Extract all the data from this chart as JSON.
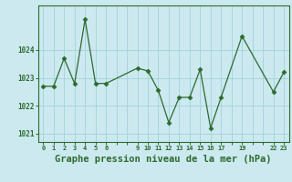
{
  "x_values": [
    0,
    1,
    2,
    3,
    4,
    5,
    6,
    9,
    10,
    11,
    12,
    13,
    14,
    15,
    16,
    17,
    19,
    22,
    23
  ],
  "y_values": [
    1022.7,
    1022.7,
    1023.7,
    1022.8,
    1025.1,
    1022.8,
    1022.8,
    1023.35,
    1023.25,
    1022.55,
    1021.4,
    1022.3,
    1022.3,
    1023.3,
    1021.2,
    1022.3,
    1024.5,
    1022.5,
    1023.2
  ],
  "line_color": "#2d6a2d",
  "marker_color": "#2d6a2d",
  "bg_color": "#cce9f0",
  "grid_color": "#aad4dd",
  "xlabel": "Graphe pression niveau de la mer (hPa)",
  "ylim": [
    1020.7,
    1025.6
  ],
  "xlim": [
    -0.5,
    23.5
  ],
  "ytick_values": [
    1021,
    1022,
    1023,
    1024
  ],
  "xlabel_fontsize": 7.5
}
